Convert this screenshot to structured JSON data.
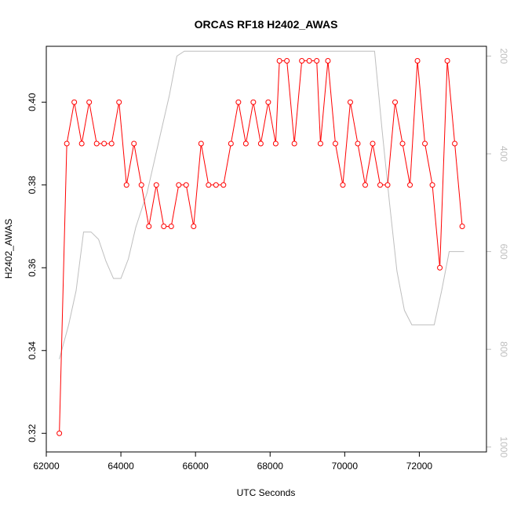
{
  "chart_data": {
    "type": "line",
    "title": "ORCAS RF18 H2402_AWAS",
    "xlabel": "UTC Seconds",
    "ylabel": "H2402_AWAS",
    "xlim": [
      62000,
      73800
    ],
    "ylim": [
      0.3155,
      0.4135
    ],
    "x_ticks": [
      62000,
      64000,
      66000,
      68000,
      70000,
      72000
    ],
    "x_tick_labels": [
      "62000",
      "64000",
      "66000",
      "68000",
      "70000",
      "72000"
    ],
    "y_ticks": [
      0.32,
      0.34,
      0.36,
      0.38,
      0.4
    ],
    "y_tick_labels": [
      "0.32",
      "0.34",
      "0.36",
      "0.38",
      "0.40"
    ],
    "y2_ticks": [
      200,
      400,
      600,
      800,
      1000
    ],
    "y2_tick_labels": [
      "200",
      "400",
      "600",
      "800",
      "1000"
    ],
    "y2lim": [
      1010,
      180
    ],
    "grid": false,
    "series": [
      {
        "name": "",
        "color": "#ff0000",
        "marker": "open-circle",
        "axis": "left",
        "x": [
          62350,
          62550,
          62750,
          62950,
          63150,
          63350,
          63550,
          63750,
          63950,
          64150,
          64350,
          64550,
          64750,
          64950,
          65150,
          65350,
          65550,
          65750,
          65950,
          66150,
          66350,
          66550,
          66750,
          66950,
          67150,
          67350,
          67550,
          67750,
          67950,
          68150,
          68250,
          68450,
          68650,
          68850,
          69050,
          69250,
          69350,
          69550,
          69750,
          69950,
          70150,
          70350,
          70550,
          70750,
          70950,
          71150,
          71350,
          71550,
          71750,
          71950,
          72150,
          72350,
          72550,
          72750,
          72950,
          73150
        ],
        "y": [
          0.32,
          0.39,
          0.4,
          0.39,
          0.4,
          0.39,
          0.39,
          0.39,
          0.4,
          0.38,
          0.39,
          0.38,
          0.37,
          0.38,
          0.37,
          0.37,
          0.38,
          0.38,
          0.37,
          0.39,
          0.38,
          0.38,
          0.38,
          0.39,
          0.4,
          0.39,
          0.4,
          0.39,
          0.4,
          0.39,
          0.41,
          0.41,
          0.39,
          0.41,
          0.41,
          0.41,
          0.39,
          0.41,
          0.39,
          0.38,
          0.4,
          0.39,
          0.38,
          0.39,
          0.38,
          0.38,
          0.4,
          0.39,
          0.38,
          0.41,
          0.39,
          0.38,
          0.36,
          0.41,
          0.39,
          0.37
        ],
        "gaps_after_index": [
          6
        ]
      },
      {
        "name": "",
        "color": "#bebebe",
        "marker": "none",
        "axis": "right",
        "x": [
          62350,
          62600,
          62800,
          63000,
          63200,
          63400,
          63600,
          63800,
          64000,
          64200,
          64400,
          64700,
          65000,
          65300,
          65500,
          65700,
          66000,
          66300,
          66600,
          66700,
          66800,
          67000,
          67500,
          68000,
          68500,
          69000,
          69500,
          70000,
          70500,
          70800,
          71000,
          71200,
          71400,
          71600,
          71800,
          72000,
          72200,
          72400,
          72600,
          72800,
          73200
        ],
        "y": [
          820,
          750,
          680,
          560,
          560,
          575,
          620,
          655,
          655,
          615,
          550,
          480,
          380,
          280,
          200,
          190,
          190,
          190,
          190,
          190,
          190,
          190,
          190,
          190,
          190,
          190,
          190,
          190,
          190,
          190,
          350,
          500,
          640,
          720,
          750,
          750,
          750,
          750,
          680,
          600,
          600
        ]
      }
    ]
  }
}
